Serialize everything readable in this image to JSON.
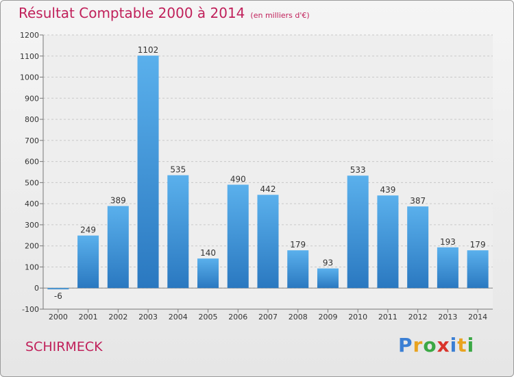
{
  "header": {
    "title": "Résultat Comptable 2000 à 2014",
    "subtitle": "(en milliers d'€)"
  },
  "place": "SCHIRMECK",
  "logo": {
    "text": "Proxiti",
    "letters": [
      {
        "ch": "P",
        "color": "#3b7fd4"
      },
      {
        "ch": "r",
        "color": "#e9a320"
      },
      {
        "ch": "o",
        "color": "#3ba845"
      },
      {
        "ch": "x",
        "color": "#d9342b"
      },
      {
        "ch": "i",
        "color": "#3b7fd4"
      },
      {
        "ch": "t",
        "color": "#e9a320"
      },
      {
        "ch": "i",
        "color": "#3ba845"
      }
    ]
  },
  "chart_data": {
    "type": "bar",
    "title": "Résultat Comptable 2000 à 2014",
    "unit": "(en milliers d'€)",
    "categories": [
      "2000",
      "2001",
      "2002",
      "2003",
      "2004",
      "2005",
      "2006",
      "2007",
      "2008",
      "2009",
      "2010",
      "2011",
      "2012",
      "2013",
      "2014"
    ],
    "values": [
      -6,
      249,
      389,
      1102,
      535,
      140,
      490,
      442,
      179,
      93,
      533,
      439,
      387,
      193,
      179
    ],
    "ylim": [
      -100,
      1200
    ],
    "yticks": [
      -100,
      0,
      100,
      200,
      300,
      400,
      500,
      600,
      700,
      800,
      900,
      1000,
      1100,
      1200
    ],
    "grid": true,
    "bar_color_top": "#5ab0ec",
    "bar_color_bottom": "#2a78c0"
  }
}
